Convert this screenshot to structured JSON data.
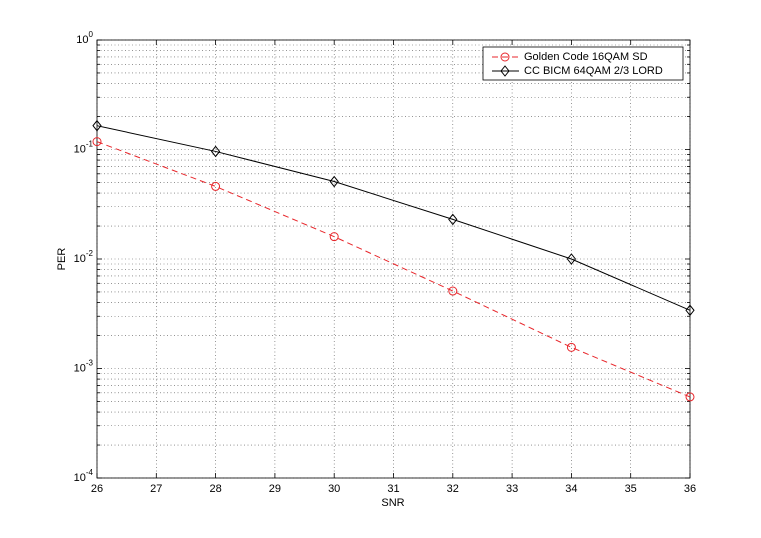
{
  "chart_data": {
    "type": "line",
    "x_label": "SNR",
    "y_label": "PER",
    "log_y": true,
    "grid": true,
    "legend": "upper right",
    "x": [
      26,
      28,
      30,
      32,
      34,
      36
    ],
    "xlim": [
      26,
      36
    ],
    "xticks": [
      26,
      27,
      28,
      29,
      30,
      31,
      32,
      33,
      34,
      35,
      36
    ],
    "ylim": [
      0.0001,
      1
    ],
    "yticks": [
      {
        "value": 0.0001,
        "label": "10^-4"
      },
      {
        "value": 0.001,
        "label": "10^-3"
      },
      {
        "value": 0.01,
        "label": "10^-2"
      },
      {
        "value": 0.1,
        "label": "10^-1"
      },
      {
        "value": 1,
        "label": "10^0"
      }
    ],
    "series": [
      {
        "name": "Golden Code 16QAM SD",
        "color": "#e8262b",
        "dash": true,
        "marker": "circle",
        "values": [
          0.118,
          0.046,
          0.016,
          0.0051,
          0.00156,
          0.00055
        ]
      },
      {
        "name": "CC BICM 64QAM 2/3 LORD",
        "color": "#000000",
        "dash": false,
        "marker": "diamond",
        "values": [
          0.165,
          0.096,
          0.051,
          0.023,
          0.01,
          0.0034
        ]
      }
    ]
  }
}
